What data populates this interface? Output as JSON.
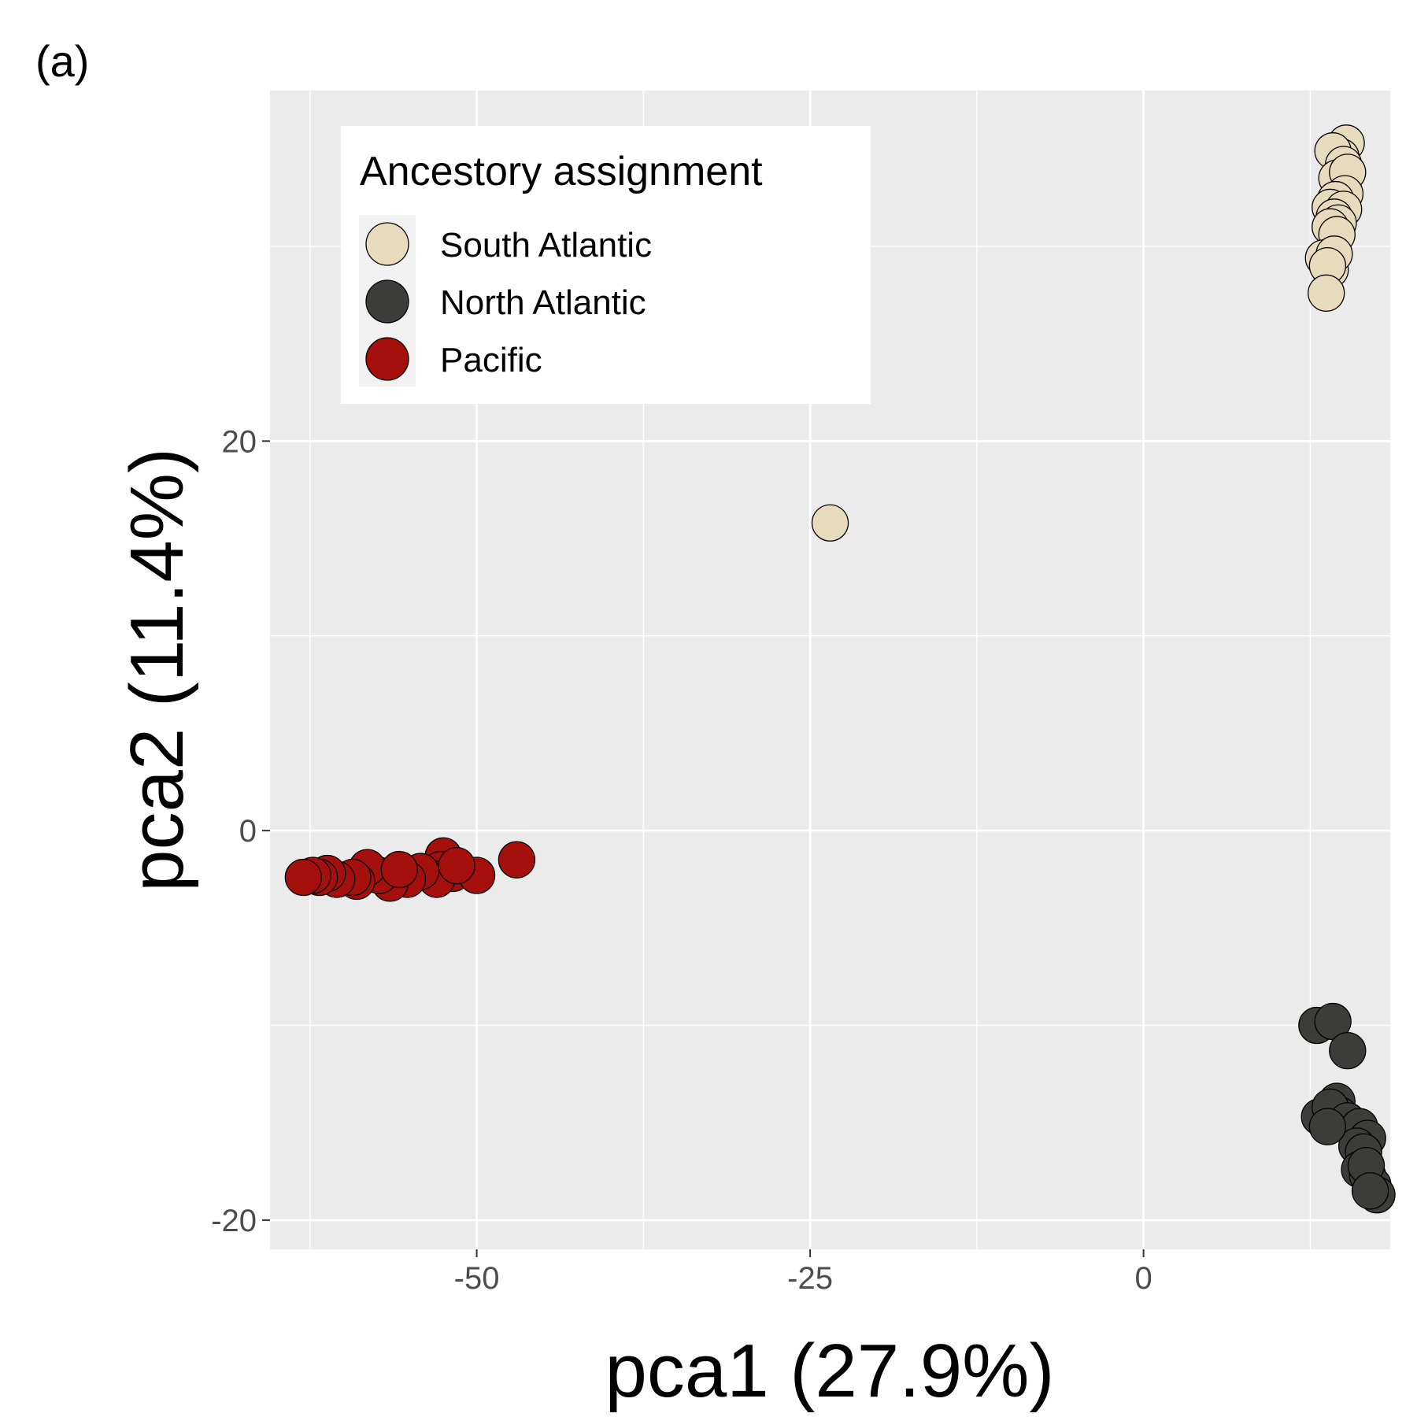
{
  "panel_label": "(a)",
  "chart_data": {
    "type": "scatter",
    "title": "",
    "xlabel": "pca1 (27.9%)",
    "ylabel": "pca2 (11.4%)",
    "xlim": [
      -65.5,
      18.5
    ],
    "ylim": [
      -21.5,
      38
    ],
    "x_ticks": [
      -50,
      -25,
      0
    ],
    "x_tick_labels": [
      "-50",
      "-25",
      "0"
    ],
    "y_ticks": [
      -20,
      0,
      20
    ],
    "y_tick_labels": [
      "-20",
      "0",
      "20"
    ],
    "grid": true,
    "background": "#ebebeb",
    "legend": {
      "title": "Ancestory assignment",
      "position": "top-left",
      "entries": [
        "South Atlantic",
        "North Atlantic",
        "Pacific"
      ]
    },
    "series": [
      {
        "name": "South Atlantic",
        "color": "#e6dbbd",
        "points": [
          [
            15.2,
            35.3
          ],
          [
            14.8,
            34.6
          ],
          [
            14.2,
            34.9
          ],
          [
            15.0,
            34.2
          ],
          [
            14.5,
            33.5
          ],
          [
            15.3,
            33.8
          ],
          [
            15.1,
            32.7
          ],
          [
            14.4,
            32.4
          ],
          [
            14.0,
            32.0
          ],
          [
            15.0,
            31.9
          ],
          [
            14.3,
            31.5
          ],
          [
            14.6,
            31.2
          ],
          [
            14.0,
            31.0
          ],
          [
            14.5,
            30.6
          ],
          [
            13.5,
            29.4
          ],
          [
            14.0,
            28.8
          ],
          [
            14.3,
            29.6
          ],
          [
            13.8,
            29.0
          ],
          [
            13.7,
            27.6
          ],
          [
            -23.5,
            15.8
          ]
        ]
      },
      {
        "name": "North Atlantic",
        "color": "#3c3c3b",
        "points": [
          [
            13.0,
            -10.0
          ],
          [
            14.2,
            -9.8
          ],
          [
            15.3,
            -11.3
          ],
          [
            14.5,
            -13.9
          ],
          [
            14.7,
            -14.6
          ],
          [
            13.2,
            -14.7
          ],
          [
            14.0,
            -14.2
          ],
          [
            15.3,
            -14.9
          ],
          [
            16.2,
            -15.2
          ],
          [
            16.8,
            -15.8
          ],
          [
            16.0,
            -16.2
          ],
          [
            13.8,
            -15.2
          ],
          [
            16.5,
            -16.5
          ],
          [
            16.2,
            -17.4
          ],
          [
            16.8,
            -17.7
          ],
          [
            17.2,
            -18.2
          ],
          [
            17.5,
            -18.7
          ],
          [
            16.7,
            -17.2
          ],
          [
            17.0,
            -18.5
          ]
        ]
      },
      {
        "name": "Pacific",
        "color": "#a50f0c",
        "points": [
          [
            -47.0,
            -1.5
          ],
          [
            -52.5,
            -1.3
          ],
          [
            -51.8,
            -2.2
          ],
          [
            -50.0,
            -2.3
          ],
          [
            -52.7,
            -2.0
          ],
          [
            -53.0,
            -2.5
          ],
          [
            -54.2,
            -2.1
          ],
          [
            -55.2,
            -2.5
          ],
          [
            -56.5,
            -2.7
          ],
          [
            -57.3,
            -2.3
          ],
          [
            -58.2,
            -1.9
          ],
          [
            -59.0,
            -2.6
          ],
          [
            -59.3,
            -2.4
          ],
          [
            -60.5,
            -2.5
          ],
          [
            -61.2,
            -2.2
          ],
          [
            -61.8,
            -2.4
          ],
          [
            -62.3,
            -2.3
          ],
          [
            -63.0,
            -2.4
          ],
          [
            -55.8,
            -2.0
          ],
          [
            -51.5,
            -1.8
          ]
        ]
      }
    ]
  }
}
